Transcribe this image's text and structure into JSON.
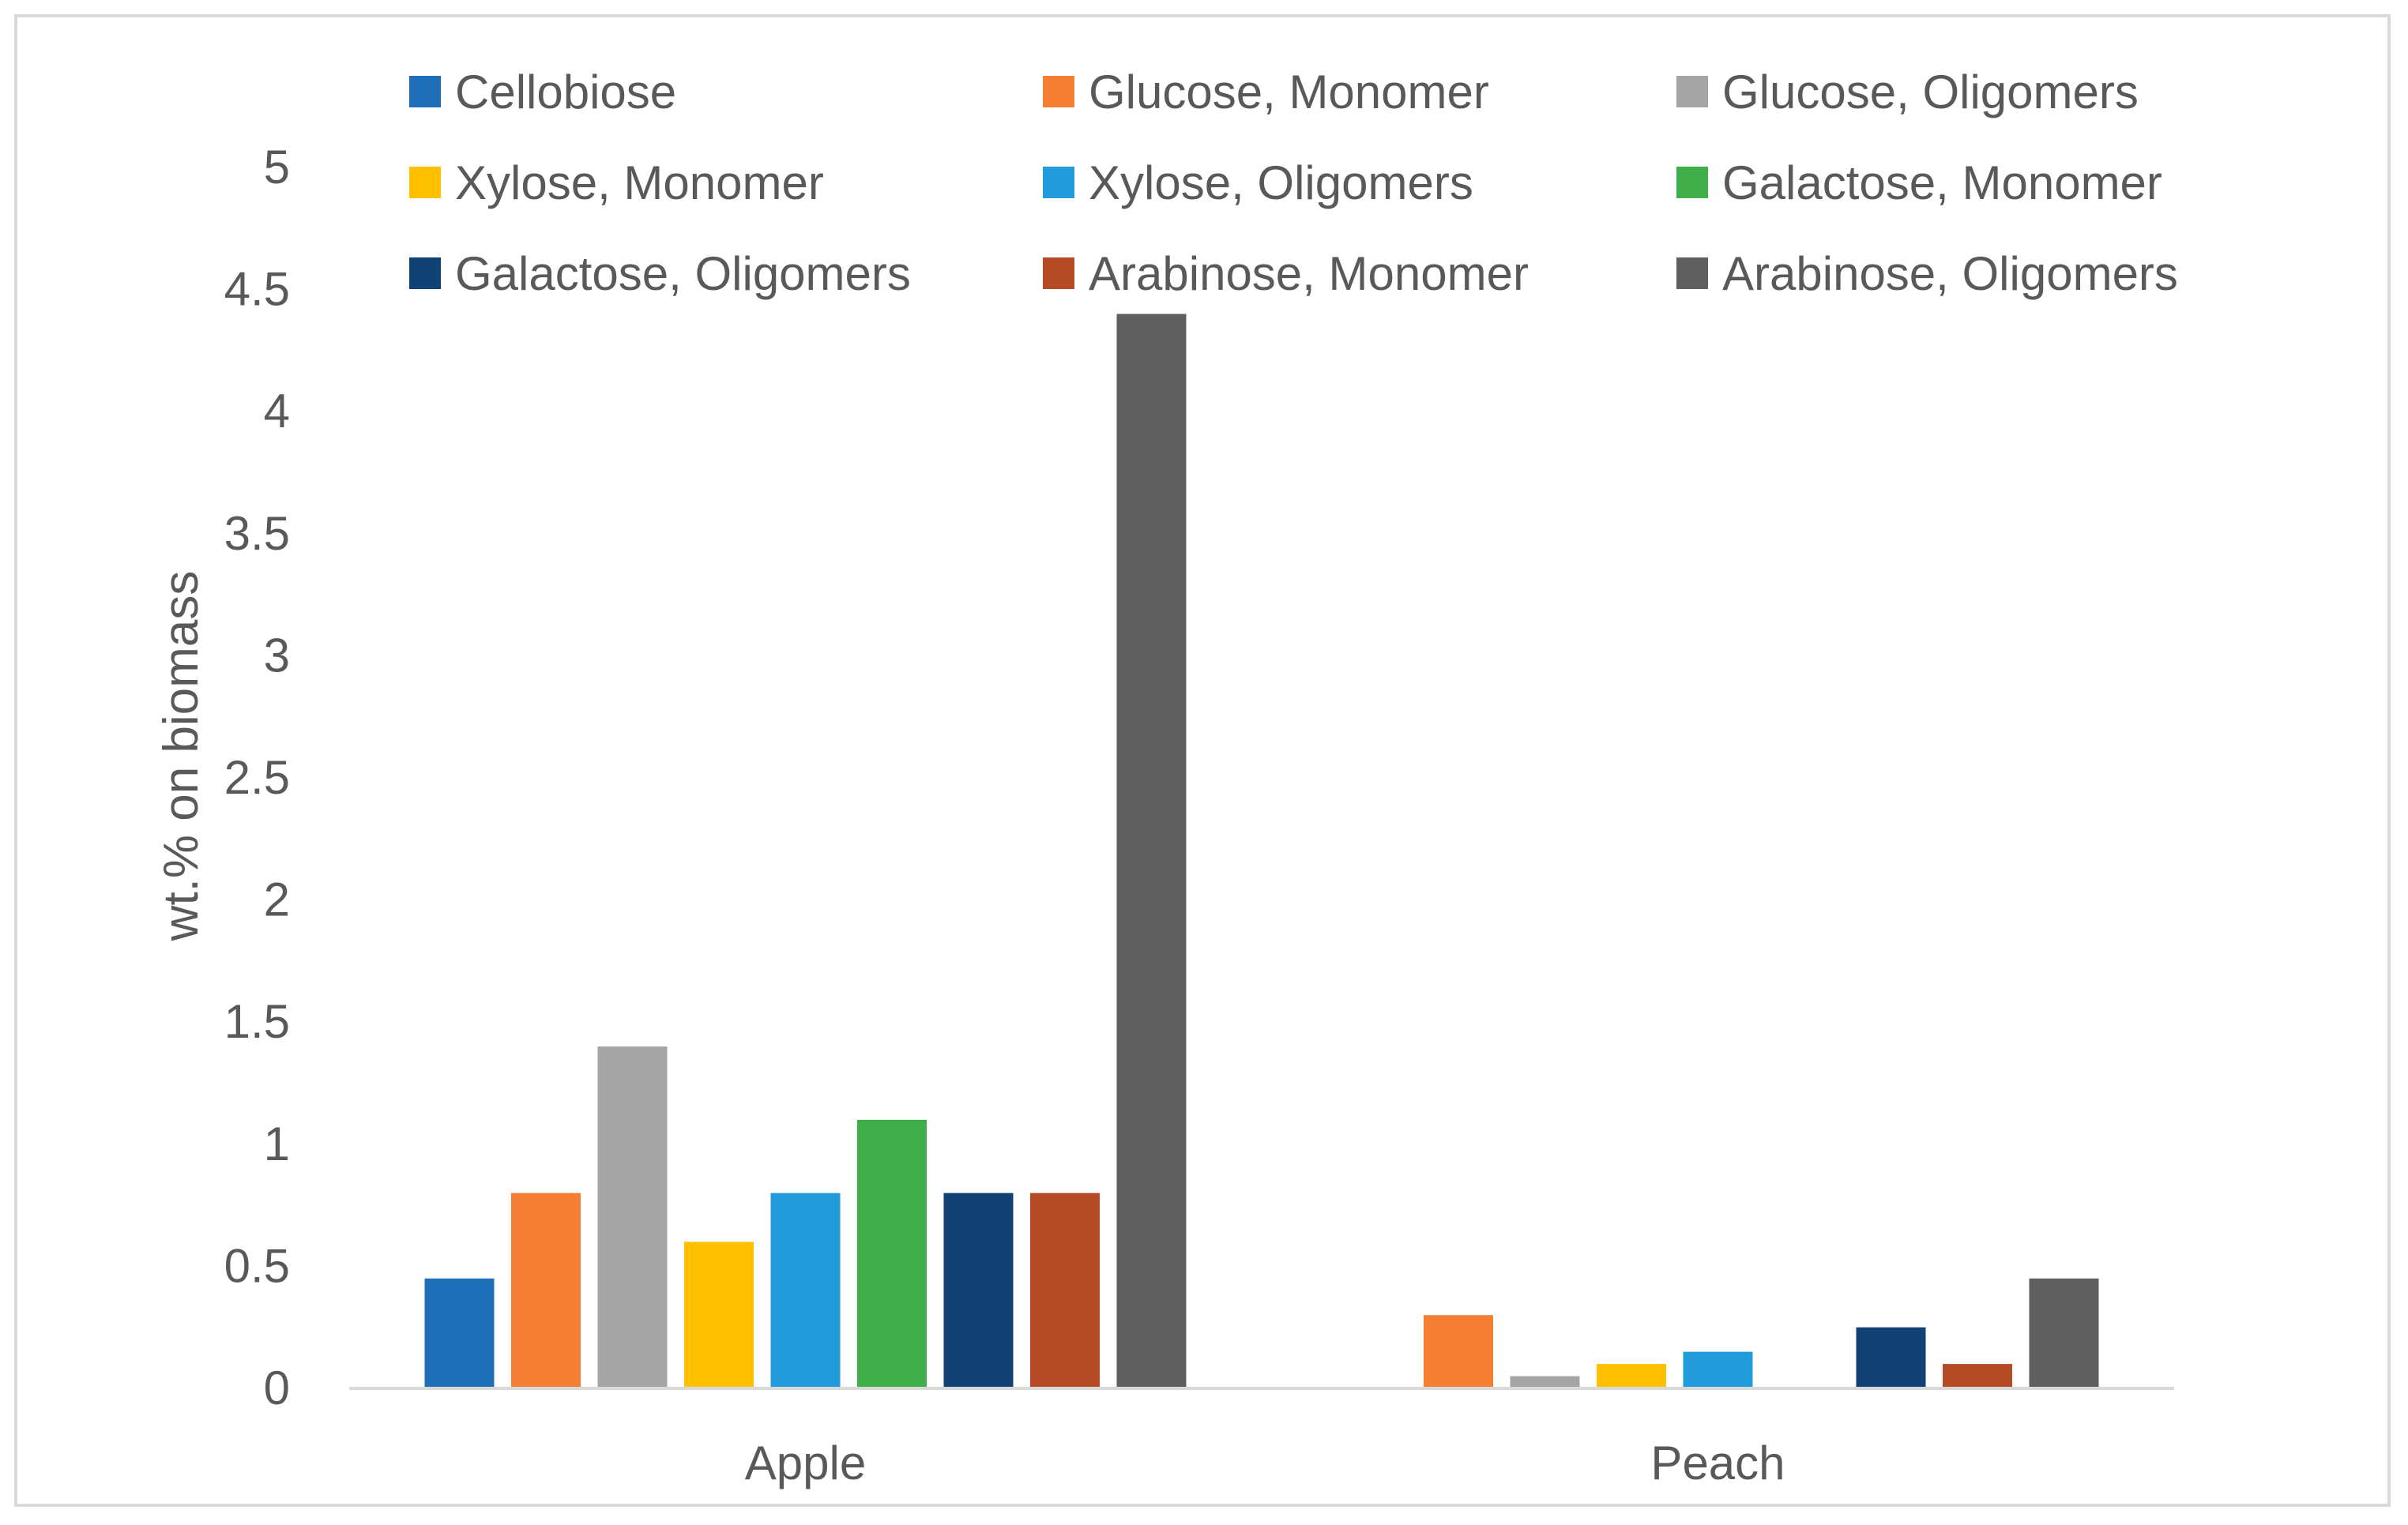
{
  "chart_data": {
    "type": "bar",
    "title": "",
    "xlabel": "",
    "ylabel": "wt.% on biomass",
    "categories": [
      "Apple",
      "Peach"
    ],
    "ylim": [
      0,
      5
    ],
    "yticks": [
      "0",
      "0.5",
      "1",
      "1.5",
      "2",
      "2.5",
      "3",
      "3.5",
      "4",
      "4.5",
      "5"
    ],
    "grid": false,
    "legend_position": "top",
    "series": [
      {
        "name": "Cellobiose",
        "color": "#1f6fb8",
        "values": [
          0.45,
          0
        ]
      },
      {
        "name": "Glucose, Monomer",
        "color": "#f47f32",
        "values": [
          0.8,
          0.3
        ]
      },
      {
        "name": "Glucose, Oligomers",
        "color": "#a5a5a5",
        "values": [
          1.4,
          0.05
        ]
      },
      {
        "name": "Xylose, Monomer",
        "color": "#ffc000",
        "values": [
          0.6,
          0.1
        ]
      },
      {
        "name": "Xylose, Oligomers",
        "color": "#219bd9",
        "values": [
          0.8,
          0.15
        ]
      },
      {
        "name": "Galactose, Monomer",
        "color": "#3fae49",
        "values": [
          1.1,
          0
        ]
      },
      {
        "name": "Galactose, Oligomers",
        "color": "#104275",
        "values": [
          0.8,
          0.25
        ]
      },
      {
        "name": "Arabinose, Monomer",
        "color": "#b54a24",
        "values": [
          0.8,
          0.1
        ]
      },
      {
        "name": "Arabinose, Oligomers",
        "color": "#5f5f5f",
        "values": [
          4.4,
          0.45
        ]
      }
    ]
  }
}
